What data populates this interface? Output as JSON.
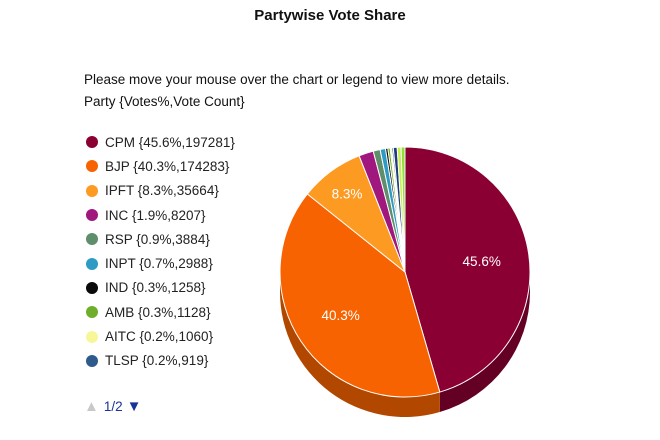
{
  "title": "Partywise Vote Share",
  "instruction": "Please move your mouse over the chart or legend to view more details.",
  "subheader": "Party {Votes%,Vote Count}",
  "pager": {
    "text": "1/2",
    "up_icon": "triangle-up-icon",
    "down_icon": "triangle-down-icon"
  },
  "chart_data": {
    "type": "pie",
    "title": "Partywise Vote Share",
    "slices": [
      {
        "party": "CPM",
        "percent": 45.6,
        "votes": 197281,
        "color": "#8b0032",
        "label": "45.6%",
        "legend": "CPM {45.6%,197281}"
      },
      {
        "party": "BJP",
        "percent": 40.3,
        "votes": 174283,
        "color": "#f76300",
        "label": "40.3%",
        "legend": "BJP {40.3%,174283}"
      },
      {
        "party": "IPFT",
        "percent": 8.3,
        "votes": 35664,
        "color": "#fc9a22",
        "label": "8.3%",
        "legend": "IPFT {8.3%,35664}"
      },
      {
        "party": "INC",
        "percent": 1.9,
        "votes": 8207,
        "color": "#a0177e",
        "label": "",
        "legend": "INC {1.9%,8207}"
      },
      {
        "party": "RSP",
        "percent": 0.9,
        "votes": 3884,
        "color": "#5f8e6a",
        "label": "",
        "legend": "RSP {0.9%,3884}"
      },
      {
        "party": "INPT",
        "percent": 0.7,
        "votes": 2988,
        "color": "#2f9bc4",
        "label": "",
        "legend": "INPT {0.7%,2988}"
      },
      {
        "party": "IND",
        "percent": 0.3,
        "votes": 1258,
        "color": "#0a0a0a",
        "label": "",
        "legend": "IND {0.3%,1258}"
      },
      {
        "party": "AMB",
        "percent": 0.3,
        "votes": 1128,
        "color": "#6fae2c",
        "label": "",
        "legend": "AMB {0.3%,1128}"
      },
      {
        "party": "AITC",
        "percent": 0.2,
        "votes": 1060,
        "color": "#f7f79a",
        "label": "",
        "legend": "AITC {0.2%,1060}"
      },
      {
        "party": "TLSP",
        "percent": 0.2,
        "votes": 919,
        "color": "#2e5b8c",
        "label": "",
        "legend": "TLSP {0.2%,919}"
      }
    ],
    "extra_slices": [
      {
        "color": "#1f3d7a"
      },
      {
        "color": "#c9ef4a"
      },
      {
        "color": "#8fe03a"
      }
    ]
  }
}
